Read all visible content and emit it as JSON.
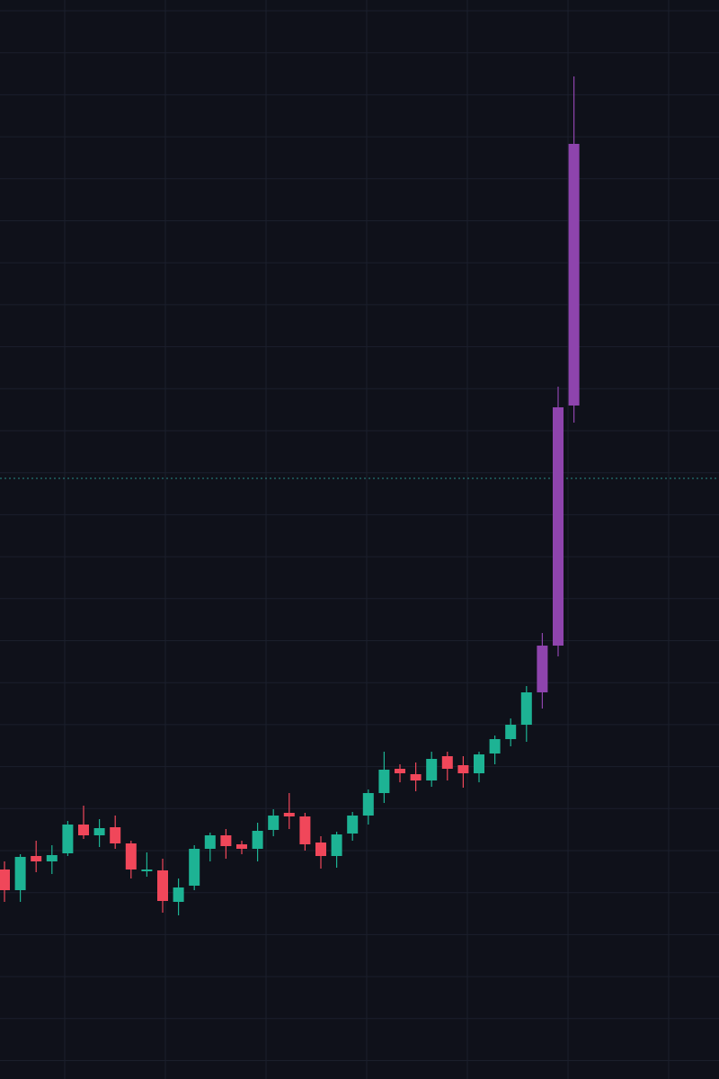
{
  "chart_data": {
    "type": "candlestick",
    "open": [
      23.3,
      21.0,
      24.8,
      24.2,
      25.1,
      28.3,
      27.1,
      28.0,
      26.2,
      23.1,
      23.2,
      19.7,
      21.5,
      25.6,
      27.1,
      26.1,
      25.6,
      27.7,
      29.6,
      29.2,
      26.3,
      24.8,
      27.3,
      29.3,
      31.8,
      34.5,
      33.9,
      33.2,
      35.9,
      34.9,
      34.0,
      36.2,
      37.8,
      39.4,
      43.0,
      48.2,
      74.9
    ],
    "high": [
      24.2,
      25.0,
      26.5,
      26.0,
      28.7,
      30.4,
      28.9,
      29.3,
      26.5,
      25.2,
      24.5,
      22.3,
      26.0,
      27.4,
      27.8,
      26.5,
      28.5,
      30.0,
      31.8,
      29.6,
      27.0,
      27.5,
      29.7,
      32.2,
      36.4,
      35.0,
      35.2,
      36.4,
      36.4,
      35.9,
      36.4,
      38.2,
      40.1,
      43.7,
      49.6,
      77.0,
      111.5
    ],
    "low": [
      19.7,
      19.7,
      23.0,
      22.8,
      24.8,
      26.7,
      25.8,
      25.6,
      22.3,
      22.5,
      18.5,
      18.2,
      21.0,
      24.2,
      24.5,
      25.0,
      24.2,
      27.0,
      27.8,
      25.4,
      23.4,
      23.5,
      26.5,
      28.3,
      30.7,
      33.0,
      32.0,
      32.5,
      33.2,
      32.4,
      33.0,
      35.0,
      37.0,
      37.5,
      41.2,
      47.0,
      73.0
    ],
    "close": [
      21.0,
      24.7,
      24.2,
      24.9,
      28.3,
      27.1,
      27.9,
      26.2,
      23.3,
      23.3,
      19.8,
      21.3,
      25.6,
      27.1,
      25.9,
      25.6,
      27.6,
      29.3,
      29.2,
      26.1,
      24.8,
      27.2,
      29.3,
      31.8,
      34.4,
      34.0,
      33.2,
      35.6,
      34.5,
      34.0,
      36.1,
      37.8,
      39.4,
      43.0,
      48.2,
      74.7,
      104.0
    ],
    "colors": [
      "#f0475a",
      "#1db394",
      "#f0475a",
      "#1db394",
      "#1db394",
      "#f0475a",
      "#1db394",
      "#f0475a",
      "#f0475a",
      "#1db394",
      "#f0475a",
      "#1db394",
      "#1db394",
      "#1db394",
      "#f0475a",
      "#f0475a",
      "#1db394",
      "#1db394",
      "#f0475a",
      "#f0475a",
      "#f0475a",
      "#1db394",
      "#1db394",
      "#1db394",
      "#1db394",
      "#f0475a",
      "#f0475a",
      "#1db394",
      "#f0475a",
      "#f0475a",
      "#1db394",
      "#1db394",
      "#1db394",
      "#1db394",
      "#8e44ad",
      "#8e44ad",
      "#8e44ad"
    ],
    "ylim": [
      0,
      120
    ],
    "grid": true
  }
}
